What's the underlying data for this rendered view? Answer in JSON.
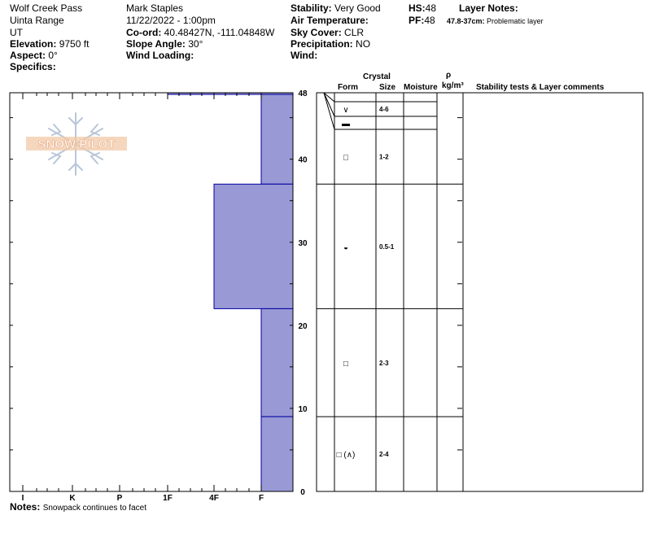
{
  "header": {
    "location": "Wolf Creek Pass",
    "range": "Uinta Range",
    "state": "UT",
    "elevation_label": "Elevation:",
    "elevation_value": "9750 ft",
    "aspect_label": "Aspect:",
    "aspect_value": "0°",
    "specifics_label": "Specifics:",
    "observer": "Mark Staples",
    "datetime": "11/22/2022 - 1:00pm",
    "coord_label": "Co-ord:",
    "coord_value": "40.48427N, -111.04848W",
    "slope_label": "Slope Angle:",
    "slope_value": "30°",
    "wind_loading_label": "Wind Loading:",
    "stability_label": "Stability:",
    "stability_value": "Very Good",
    "air_temp_label": "Air Temperature:",
    "sky_label": "Sky Cover:",
    "sky_value": "CLR",
    "precip_label": "Precipitation:",
    "precip_value": "NO",
    "wind_label": "Wind:",
    "hs_label": "HS:",
    "hs_value": "48",
    "pf_label": "PF:",
    "pf_value": "48",
    "layer_notes_label": "Layer Notes:",
    "layer_note_range": "47.8-37cm:",
    "layer_note_text": "Problematic layer"
  },
  "logo": {
    "text": "SNOW PILOT"
  },
  "columns": {
    "crystal": "Crystal",
    "form": "Form",
    "size": "Size",
    "moisture": "Moisture",
    "rho": "ρ",
    "density_unit": "kg/m³",
    "stability": "Stability tests & Layer comments"
  },
  "notes": {
    "label": "Notes:",
    "text": "Snowpack continues to facet"
  },
  "colors": {
    "hardness_fill": "#9999d6",
    "hardness_edge": "#0000a0"
  },
  "chart_data": {
    "type": "profile",
    "depth_unit": "cm",
    "depth_range": [
      0,
      48
    ],
    "depth_ticks": [
      "0",
      "10",
      "20",
      "30",
      "40",
      "48"
    ],
    "hardness_labels": [
      "I",
      "K",
      "P",
      "1F",
      "4F",
      "F"
    ],
    "hardness_layers": [
      {
        "top": 48,
        "bottom": 47.8,
        "hardness": "1F"
      },
      {
        "top": 47.8,
        "bottom": 37,
        "hardness": "F"
      },
      {
        "top": 37,
        "bottom": 22,
        "hardness": "4F"
      },
      {
        "top": 22,
        "bottom": 9,
        "hardness": "F"
      },
      {
        "top": 9,
        "bottom": 0,
        "hardness": "F"
      }
    ],
    "grain_layers": [
      {
        "top": 48,
        "bottom": 47.8,
        "form": "∨",
        "size": "4-6"
      },
      {
        "top": 47.8,
        "bottom": 46,
        "form": "▬",
        "size": ""
      },
      {
        "top": 46,
        "bottom": 37,
        "form": "□",
        "size": "1-2"
      },
      {
        "top": 37,
        "bottom": 22,
        "form": "◒",
        "size": "0.5-1"
      },
      {
        "top": 22,
        "bottom": 9,
        "form": "□",
        "size": "2-3"
      },
      {
        "top": 9,
        "bottom": 0,
        "form": "□ (∧)",
        "size": "2-4"
      }
    ]
  }
}
